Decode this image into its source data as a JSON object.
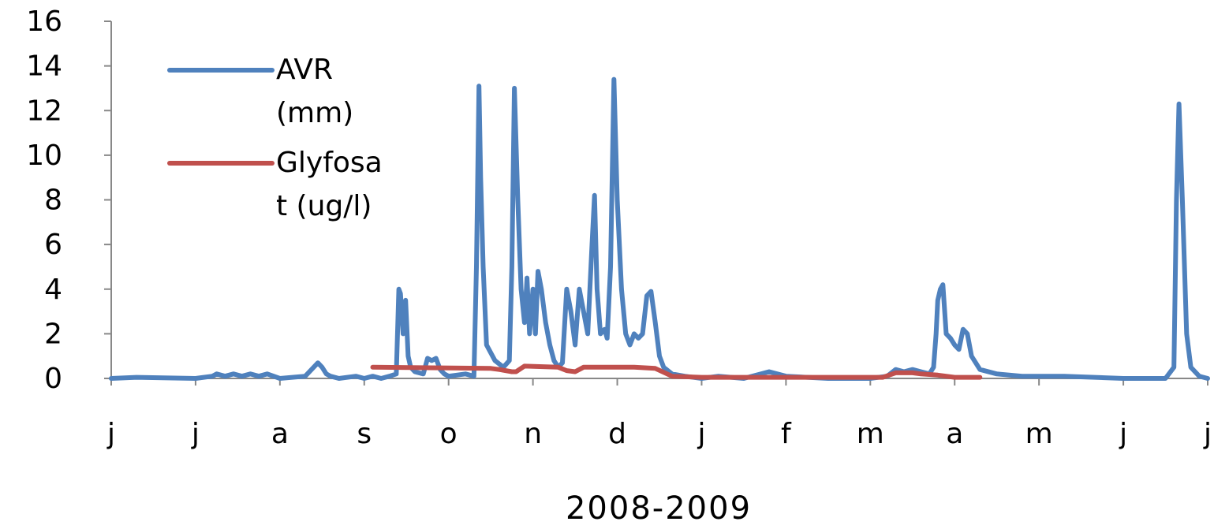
{
  "chart_data": {
    "type": "line",
    "title": "",
    "xlabel": "2008-2009",
    "ylabel": "",
    "ylim": [
      0,
      16
    ],
    "yticks": [
      "0",
      "2",
      "4",
      "6",
      "8",
      "10",
      "12",
      "14",
      "16"
    ],
    "xlim": [
      0,
      13
    ],
    "month_labels": [
      "j",
      "j",
      "a",
      "s",
      "o",
      "n",
      "d",
      "j",
      "f",
      "m",
      "a",
      "m",
      "j",
      "j"
    ],
    "grid": false,
    "legend_position": "top-left",
    "series": [
      {
        "name": "AVR\n(mm)",
        "color": "#4f81bd",
        "x": [
          0.0,
          0.3,
          1.0,
          1.2,
          1.25,
          1.35,
          1.45,
          1.55,
          1.65,
          1.75,
          1.85,
          2.0,
          2.3,
          2.45,
          2.5,
          2.55,
          2.6,
          2.7,
          2.9,
          3.0,
          3.1,
          3.2,
          3.3,
          3.38,
          3.41,
          3.43,
          3.46,
          3.49,
          3.52,
          3.55,
          3.6,
          3.7,
          3.75,
          3.8,
          3.85,
          3.9,
          3.95,
          4.0,
          4.2,
          4.3,
          4.33,
          4.36,
          4.38,
          4.41,
          4.45,
          4.55,
          4.65,
          4.72,
          4.75,
          4.78,
          4.82,
          4.86,
          4.9,
          4.93,
          4.96,
          5.0,
          5.03,
          5.06,
          5.1,
          5.15,
          5.2,
          5.25,
          5.3,
          5.35,
          5.4,
          5.45,
          5.5,
          5.55,
          5.6,
          5.65,
          5.7,
          5.73,
          5.76,
          5.8,
          5.85,
          5.88,
          5.92,
          5.96,
          6.0,
          6.05,
          6.1,
          6.15,
          6.2,
          6.25,
          6.3,
          6.35,
          6.4,
          6.45,
          6.5,
          6.55,
          6.65,
          6.8,
          7.0,
          7.2,
          7.5,
          7.8,
          8.0,
          8.5,
          9.0,
          9.2,
          9.3,
          9.4,
          9.5,
          9.6,
          9.7,
          9.75,
          9.78,
          9.8,
          9.83,
          9.86,
          9.9,
          9.95,
          10.0,
          10.05,
          10.1,
          10.15,
          10.2,
          10.3,
          10.5,
          10.8,
          11.0,
          11.3,
          12.0,
          12.5,
          12.6,
          12.63,
          12.66,
          12.7,
          12.75,
          12.8,
          12.9,
          13.0
        ],
        "y": [
          0.0,
          0.05,
          0.0,
          0.1,
          0.2,
          0.1,
          0.2,
          0.1,
          0.2,
          0.1,
          0.2,
          0.0,
          0.1,
          0.7,
          0.5,
          0.2,
          0.1,
          0.0,
          0.1,
          0.0,
          0.1,
          0.0,
          0.1,
          0.2,
          4.0,
          3.8,
          2.0,
          3.5,
          1.0,
          0.5,
          0.3,
          0.2,
          0.9,
          0.8,
          0.9,
          0.4,
          0.2,
          0.1,
          0.2,
          0.1,
          5.0,
          13.1,
          9.0,
          5.0,
          1.5,
          0.8,
          0.5,
          0.8,
          5.0,
          13.0,
          8.0,
          4.0,
          2.5,
          4.5,
          2.0,
          4.0,
          2.0,
          4.8,
          4.0,
          2.5,
          1.5,
          0.8,
          0.5,
          0.7,
          4.0,
          3.0,
          1.5,
          4.0,
          3.0,
          2.0,
          6.0,
          8.2,
          4.0,
          2.0,
          2.2,
          1.8,
          5.0,
          13.4,
          8.0,
          4.0,
          2.0,
          1.5,
          2.0,
          1.8,
          2.0,
          3.7,
          3.9,
          2.5,
          1.0,
          0.5,
          0.2,
          0.1,
          0.0,
          0.1,
          0.0,
          0.3,
          0.1,
          0.0,
          0.0,
          0.1,
          0.4,
          0.3,
          0.4,
          0.3,
          0.2,
          0.5,
          2.0,
          3.5,
          4.0,
          4.2,
          2.0,
          1.8,
          1.5,
          1.3,
          2.2,
          2.0,
          1.0,
          0.4,
          0.2,
          0.1,
          0.1,
          0.1,
          0.0,
          0.0,
          0.5,
          8.0,
          12.3,
          8.0,
          2.0,
          0.5,
          0.1,
          0.0
        ]
      },
      {
        "name": "Glyfosa\nt (ug/l)",
        "color": "#c0504d",
        "x": [
          3.1,
          4.5,
          4.6,
          4.75,
          4.8,
          4.9,
          5.3,
          5.4,
          5.5,
          5.6,
          6.2,
          6.45,
          6.65,
          7.0,
          8.0,
          9.0,
          9.15,
          9.3,
          9.5,
          9.6,
          9.8,
          10.0,
          10.3
        ],
        "y": [
          0.5,
          0.45,
          0.4,
          0.3,
          0.3,
          0.55,
          0.5,
          0.35,
          0.3,
          0.5,
          0.5,
          0.45,
          0.1,
          0.05,
          0.05,
          0.05,
          0.05,
          0.25,
          0.25,
          0.2,
          0.15,
          0.05,
          0.05
        ]
      }
    ]
  }
}
